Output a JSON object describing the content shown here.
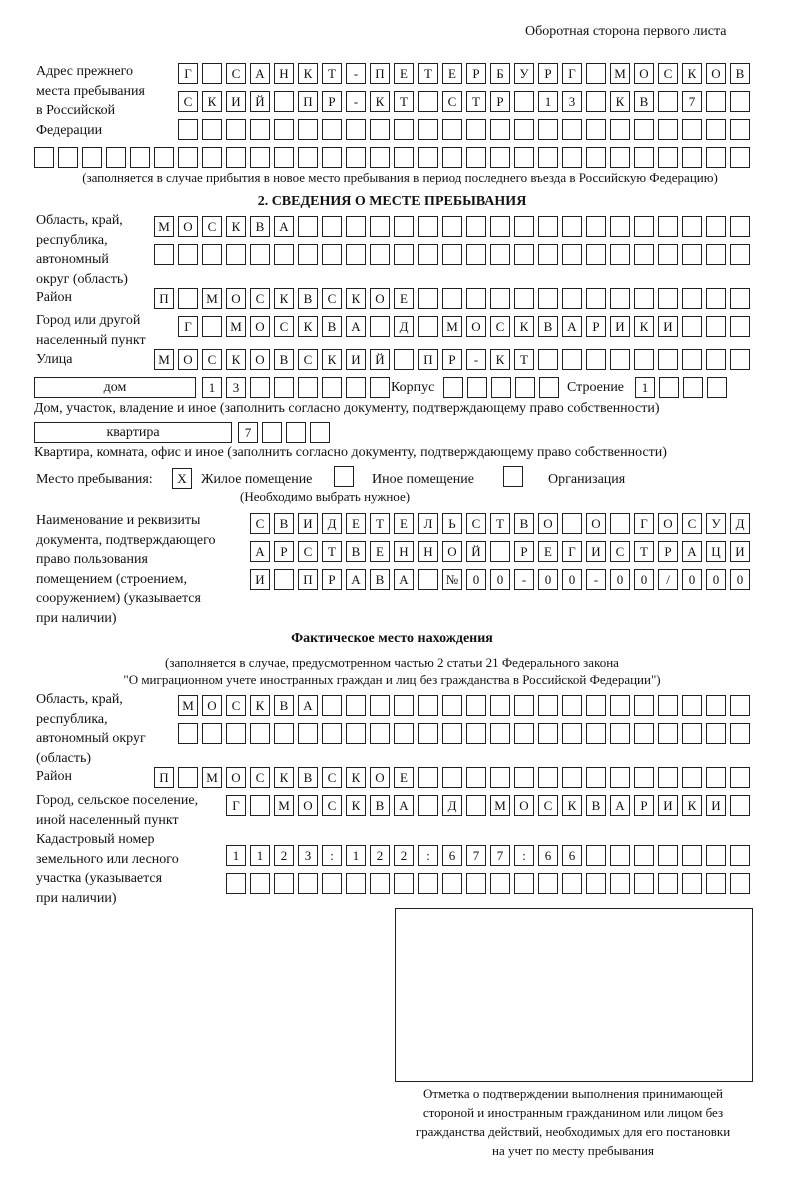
{
  "header": "Оборотная сторона первого листа",
  "prev_address": {
    "label": [
      "Адрес прежнего",
      "места пребывания",
      "в Российской",
      "Федерации"
    ],
    "rows": [
      [
        "Г",
        "",
        "С",
        "А",
        "Н",
        "К",
        "Т",
        "-",
        "П",
        "Е",
        "Т",
        "Е",
        "Р",
        "Б",
        "У",
        "Р",
        "Г",
        "",
        "М",
        "О",
        "С",
        "К",
        "О",
        "В"
      ],
      [
        "С",
        "К",
        "И",
        "Й",
        "",
        "П",
        "Р",
        "-",
        "К",
        "Т",
        "",
        "С",
        "Т",
        "Р",
        "",
        "1",
        "3",
        "",
        "К",
        "В",
        "",
        "7",
        "",
        ""
      ],
      [
        "",
        "",
        "",
        "",
        "",
        "",
        "",
        "",
        "",
        "",
        "",
        "",
        "",
        "",
        "",
        "",
        "",
        "",
        "",
        "",
        "",
        "",
        "",
        ""
      ],
      [
        "",
        "",
        "",
        "",
        "",
        "",
        "",
        "",
        "",
        "",
        "",
        "",
        "",
        "",
        "",
        "",
        "",
        "",
        "",
        "",
        "",
        "",
        "",
        "",
        "",
        "",
        "",
        "",
        "",
        ""
      ]
    ],
    "note": "(заполняется в случае прибытия в новое место пребывания в период последнего въезда в Российскую Федерацию)"
  },
  "section2": {
    "heading": "2. СВЕДЕНИЯ О МЕСТЕ ПРЕБЫВАНИЯ",
    "region": {
      "label": [
        "Область, край,",
        "республика,",
        "автономный",
        "округ (область)"
      ],
      "rows": [
        [
          "М",
          "О",
          "С",
          "К",
          "В",
          "А",
          "",
          "",
          "",
          "",
          "",
          "",
          "",
          "",
          "",
          "",
          "",
          "",
          "",
          "",
          "",
          "",
          "",
          "",
          ""
        ],
        [
          "",
          "",
          "",
          "",
          "",
          "",
          "",
          "",
          "",
          "",
          "",
          "",
          "",
          "",
          "",
          "",
          "",
          "",
          "",
          "",
          "",
          "",
          "",
          "",
          ""
        ]
      ]
    },
    "district": {
      "label": [
        "Район"
      ],
      "rows": [
        [
          "П",
          "",
          "М",
          "О",
          "С",
          "К",
          "В",
          "С",
          "К",
          "О",
          "Е",
          "",
          "",
          "",
          "",
          "",
          "",
          "",
          "",
          "",
          "",
          "",
          "",
          "",
          ""
        ]
      ]
    },
    "city": {
      "label": [
        "Город или другой",
        "населенный пункт"
      ],
      "rows": [
        [
          "Г",
          "",
          "М",
          "О",
          "С",
          "К",
          "В",
          "А",
          "",
          "Д",
          "",
          "М",
          "О",
          "С",
          "К",
          "В",
          "А",
          "Р",
          "И",
          "К",
          "И",
          "",
          "",
          ""
        ]
      ]
    },
    "street": {
      "label": [
        "Улица"
      ],
      "rows": [
        [
          "М",
          "О",
          "С",
          "К",
          "О",
          "В",
          "С",
          "К",
          "И",
          "Й",
          "",
          "П",
          "Р",
          "-",
          "К",
          "Т",
          "",
          "",
          "",
          "",
          "",
          "",
          "",
          "",
          ""
        ]
      ]
    },
    "house": {
      "type": "дом",
      "number": [
        "1",
        "3",
        "",
        "",
        "",
        "",
        "",
        ""
      ],
      "korpus_label": "Корпус",
      "korpus": [
        "",
        "",
        "",
        "",
        ""
      ],
      "building_label": "Строение",
      "building": [
        "1",
        "",
        "",
        ""
      ],
      "caption": "Дом, участок, владение и иное (заполнить согласно документу, подтверждающему право собственности)"
    },
    "apartment": {
      "type": "квартира",
      "number": [
        "7",
        "",
        "",
        ""
      ],
      "caption": "Квартира, комната, офис и иное (заполнить согласно документу, подтверждающему право собственности)"
    },
    "stay_place": {
      "label": "Место пребывания:",
      "options": [
        {
          "mark": "X",
          "label": "Жилое помещение",
          "checked": true
        },
        {
          "mark": "",
          "label": "Иное помещение",
          "checked": false
        },
        {
          "mark": "",
          "label": "Организация",
          "checked": false
        }
      ],
      "hint": "(Необходимо выбрать нужное)"
    },
    "document": {
      "label": [
        "Наименование и реквизиты",
        "документа, подтверждающего",
        "право пользования",
        "помещением (строением,",
        "сооружением) (указывается",
        "при наличии)"
      ],
      "rows": [
        [
          "С",
          "В",
          "И",
          "Д",
          "Е",
          "Т",
          "Е",
          "Л",
          "Ь",
          "С",
          "Т",
          "В",
          "О",
          "",
          "О",
          "",
          "Г",
          "О",
          "С",
          "У",
          "Д"
        ],
        [
          "А",
          "Р",
          "С",
          "Т",
          "В",
          "Е",
          "Н",
          "Н",
          "О",
          "Й",
          "",
          "Р",
          "Е",
          "Г",
          "И",
          "С",
          "Т",
          "Р",
          "А",
          "Ц",
          "И"
        ],
        [
          "И",
          "",
          "П",
          "Р",
          "А",
          "В",
          "А",
          "",
          "№",
          "0",
          "0",
          "-",
          "0",
          "0",
          "-",
          "0",
          "0",
          "/",
          "0",
          "0",
          "0"
        ]
      ]
    }
  },
  "actual": {
    "heading": "Фактическое место нахождения",
    "note": [
      "(заполняется в случае, предусмотренном частью 2 статьи 21 Федерального закона",
      "\"О миграционном учете иностранных граждан и лиц без гражданства в Российской Федерации\")"
    ],
    "region": {
      "label": [
        "Область, край,",
        "республика,",
        "автономный округ",
        "(область)"
      ],
      "rows": [
        [
          "М",
          "О",
          "С",
          "К",
          "В",
          "А",
          "",
          "",
          "",
          "",
          "",
          "",
          "",
          "",
          "",
          "",
          "",
          "",
          "",
          "",
          "",
          "",
          "",
          ""
        ],
        [
          "",
          "",
          "",
          "",
          "",
          "",
          "",
          "",
          "",
          "",
          "",
          "",
          "",
          "",
          "",
          "",
          "",
          "",
          "",
          "",
          "",
          "",
          "",
          ""
        ]
      ]
    },
    "district": {
      "label": [
        "Район"
      ],
      "rows": [
        [
          "П",
          "",
          "М",
          "О",
          "С",
          "К",
          "В",
          "С",
          "К",
          "О",
          "Е",
          "",
          "",
          "",
          "",
          "",
          "",
          "",
          "",
          "",
          "",
          "",
          "",
          "",
          ""
        ]
      ]
    },
    "city": {
      "label": [
        "Город, сельское поселение,",
        "иной населенный пункт"
      ],
      "rows": [
        [
          "Г",
          "",
          "М",
          "О",
          "С",
          "К",
          "В",
          "А",
          "",
          "Д",
          "",
          "М",
          "О",
          "С",
          "К",
          "В",
          "А",
          "Р",
          "И",
          "К",
          "И",
          ""
        ]
      ]
    },
    "cadastral": {
      "label": [
        "Кадастровый номер",
        "земельного или лесного",
        "участка (указывается",
        "при наличии)"
      ],
      "rows": [
        [
          "1",
          "1",
          "2",
          "3",
          ":",
          "1",
          "2",
          "2",
          ":",
          "6",
          "7",
          "7",
          ":",
          "6",
          "6",
          "",
          "",
          "",
          "",
          "",
          "",
          ""
        ],
        [
          "",
          "",
          "",
          "",
          "",
          "",
          "",
          "",
          "",
          "",
          "",
          "",
          "",
          "",
          "",
          "",
          "",
          "",
          "",
          "",
          "",
          ""
        ]
      ]
    }
  },
  "stamp_caption": [
    "Отметка о подтверждении выполнения принимающей",
    "стороной и иностранным гражданином или лицом без",
    "гражданства действий, необходимых для его постановки",
    "на учет по месту пребывания"
  ]
}
